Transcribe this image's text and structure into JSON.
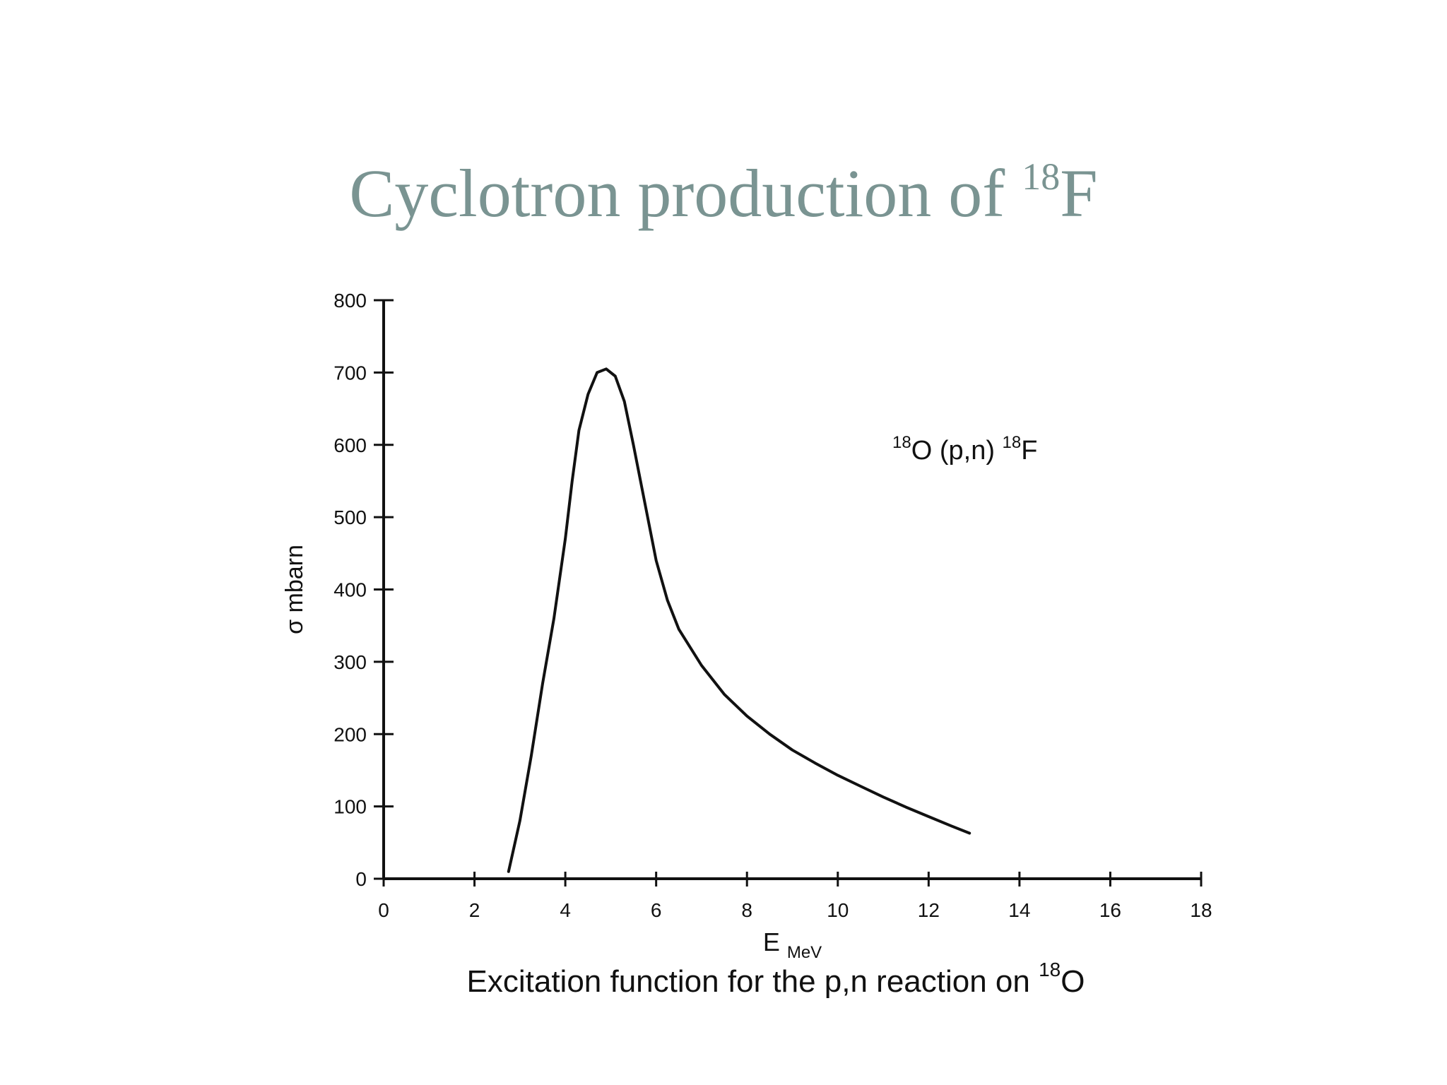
{
  "slide": {
    "title_text": "Cyclotron production of ",
    "title_sup": "18",
    "title_tail": "F",
    "caption_text": "Excitation function for the p,n reaction on ",
    "caption_sup": "18",
    "caption_tail": "O"
  },
  "colors": {
    "title": "#7a9492",
    "ink": "#111111",
    "background": "#ffffff"
  },
  "chart_data": {
    "type": "line",
    "xlabel": "E",
    "xlabel_sub": "MeV",
    "ylabel": "σ mbarn",
    "xlim": [
      0,
      18
    ],
    "ylim": [
      0,
      800
    ],
    "xticks": [
      0,
      2,
      4,
      6,
      8,
      10,
      12,
      14,
      16,
      18
    ],
    "yticks": [
      0,
      100,
      200,
      300,
      400,
      500,
      600,
      700,
      800
    ],
    "grid": false,
    "annotation": {
      "parts": [
        {
          "text": "18",
          "sup": true
        },
        {
          "text": "O (p,n) ",
          "sup": false
        },
        {
          "text": "18",
          "sup": true
        },
        {
          "text": "F",
          "sup": false
        }
      ],
      "at": [
        12.8,
        580
      ]
    },
    "series": [
      {
        "x": [
          2.75,
          3.0,
          3.25,
          3.5,
          3.75,
          4.0,
          4.15,
          4.3,
          4.5,
          4.7,
          4.9,
          5.1,
          5.3,
          5.5,
          5.75,
          6.0,
          6.25,
          6.5,
          7.0,
          7.5,
          8.0,
          8.5,
          9.0,
          9.5,
          10.0,
          10.5,
          11.0,
          11.5,
          12.0,
          12.5,
          12.9
        ],
        "y": [
          10,
          80,
          170,
          270,
          360,
          470,
          550,
          620,
          670,
          700,
          705,
          695,
          660,
          600,
          520,
          440,
          385,
          345,
          295,
          255,
          225,
          200,
          178,
          160,
          143,
          128,
          113,
          99,
          86,
          73,
          63
        ]
      }
    ]
  }
}
